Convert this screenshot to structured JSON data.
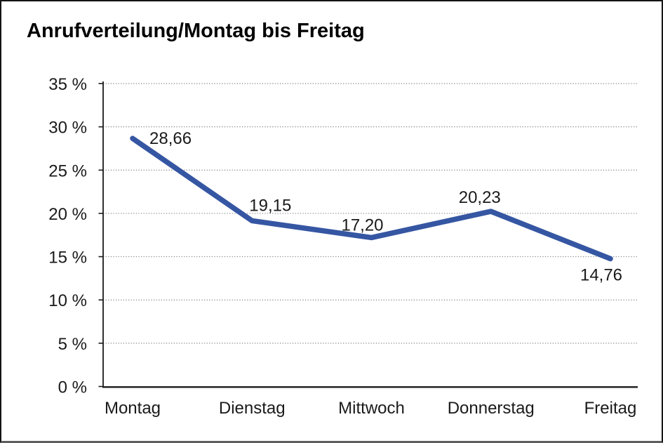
{
  "window": {
    "background_color": "#ffffff",
    "border_color": "#141414"
  },
  "header": {
    "title": "Anrufverteilung/Montag bis Freitag"
  },
  "chart_data": {
    "type": "line",
    "title": "Anrufverteilung/Montag bis Freitag",
    "categories": [
      "Montag",
      "Dienstag",
      "Mittwoch",
      "Donnerstag",
      "Freitag"
    ],
    "values": [
      28.66,
      19.15,
      17.2,
      20.23,
      14.76
    ],
    "data_labels": [
      "28,66",
      "19,15",
      "17,20",
      "20,23",
      "14,76"
    ],
    "y_tick_labels": [
      "0 %",
      "5 %",
      "10 %",
      "15 %",
      "20 %",
      "25 %",
      "30 %",
      "35 %"
    ],
    "ylim": [
      0,
      35
    ],
    "y_tick_step": 5,
    "xlabel": "",
    "ylabel": "",
    "legend": "none",
    "grid": "dotted-horizontal",
    "line_color": "#3556A2",
    "axis_color": "#1a1a1a",
    "grid_color": "#808080",
    "label_color": "#1a1a1a"
  }
}
